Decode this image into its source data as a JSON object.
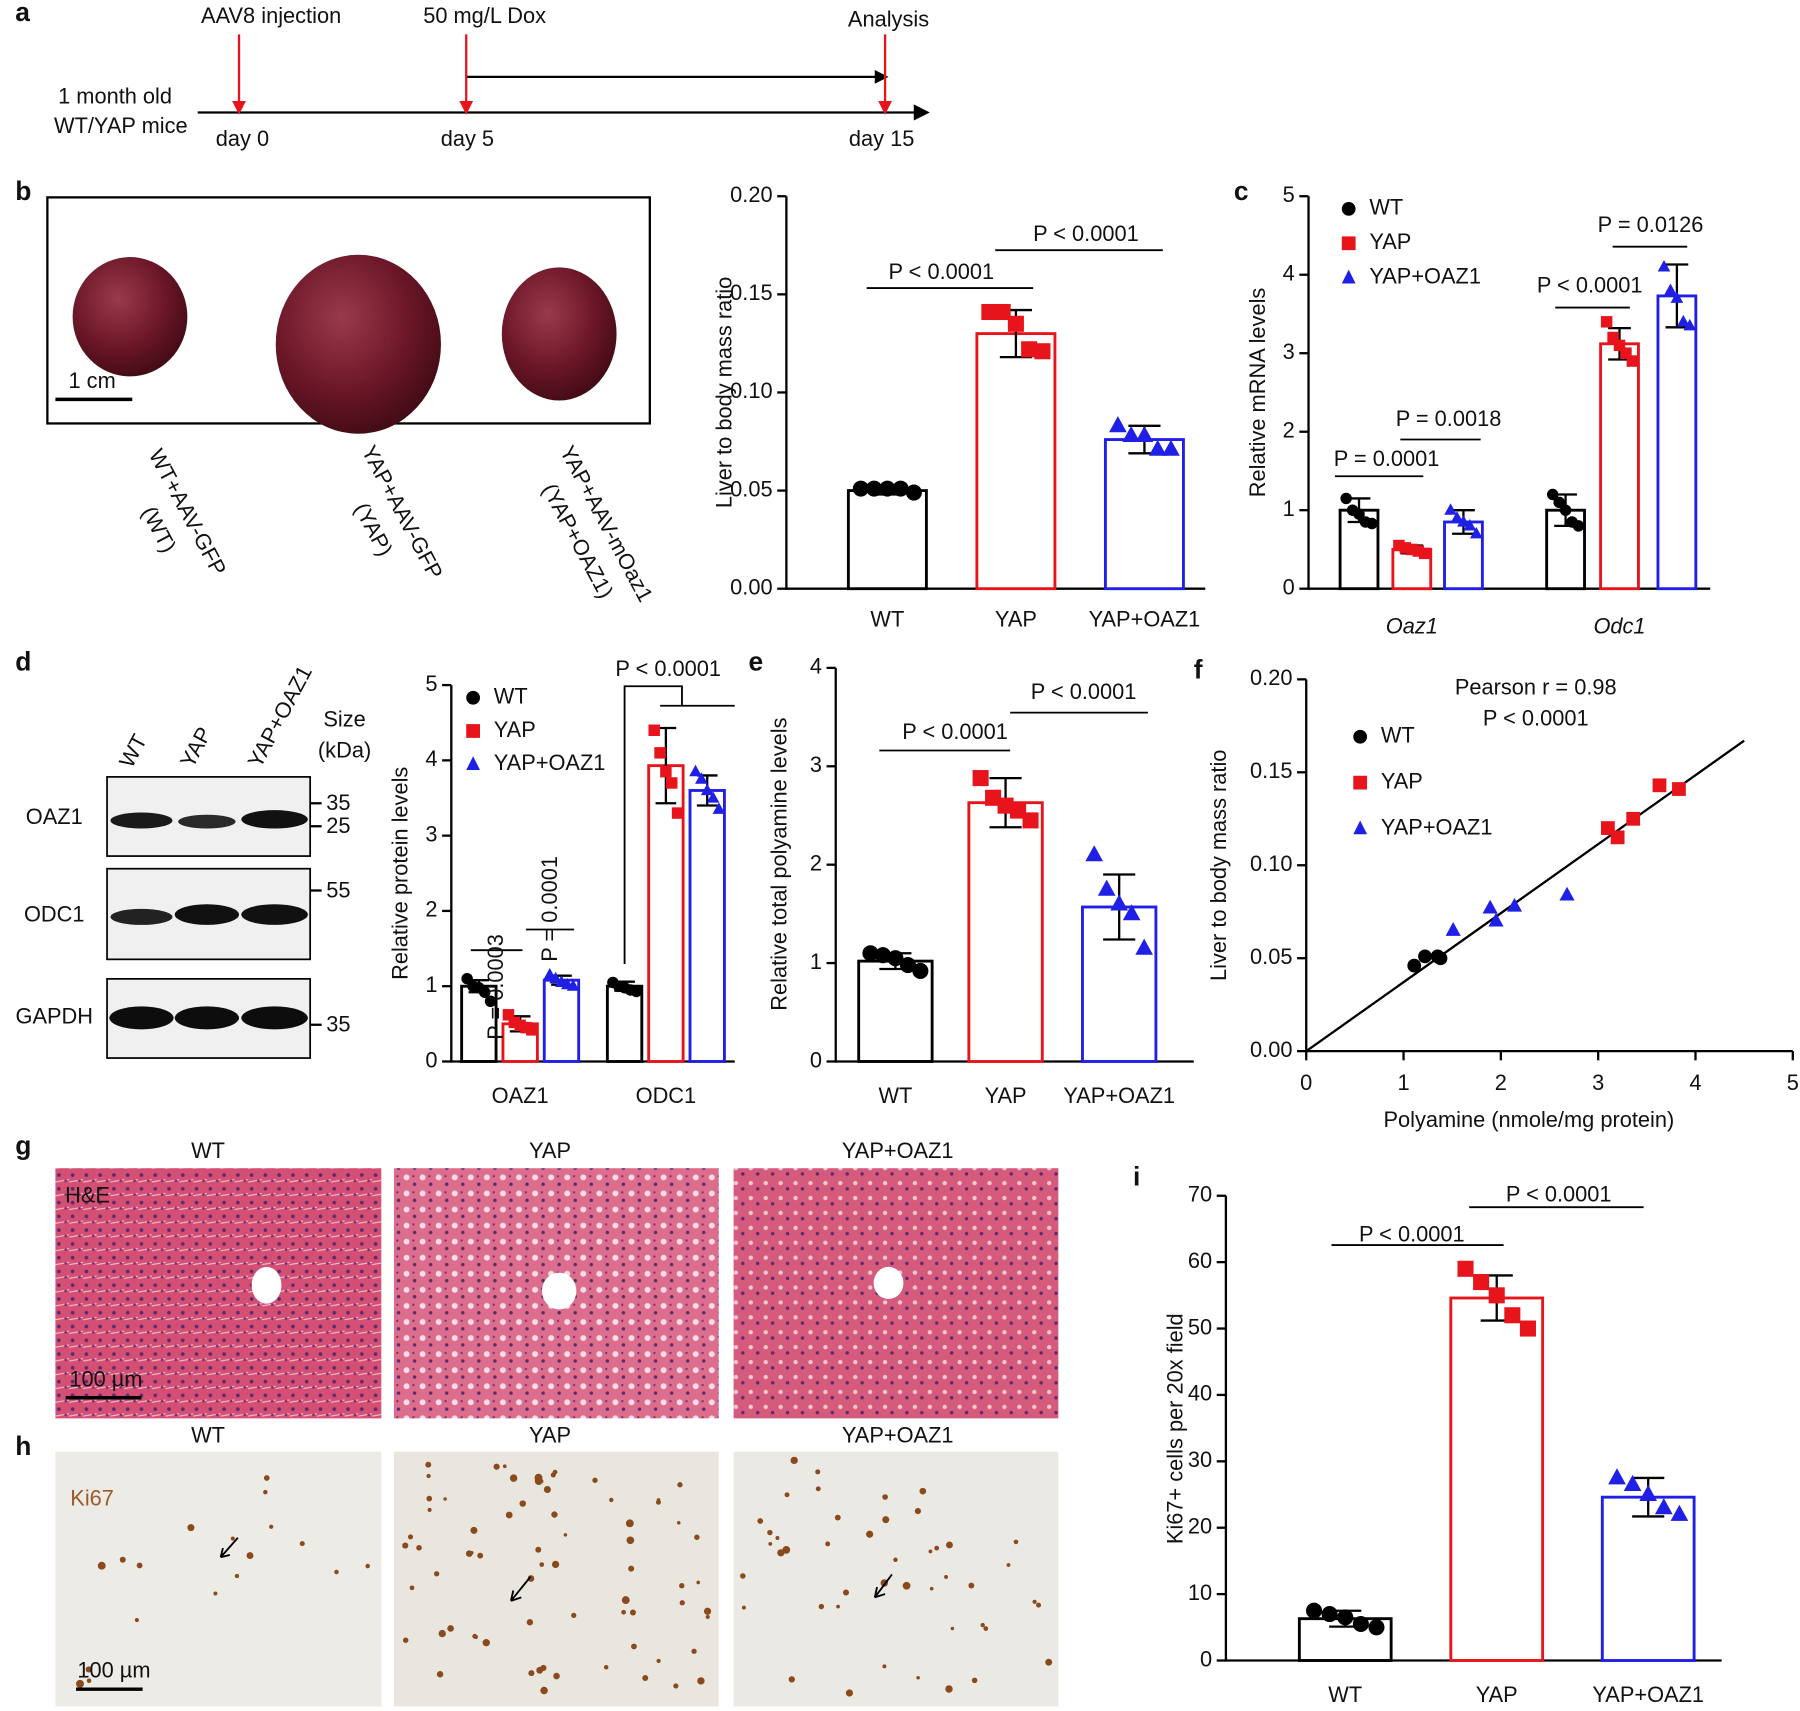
{
  "panel_labels": [
    "a",
    "b",
    "c",
    "d",
    "e",
    "f",
    "g",
    "h",
    "i"
  ],
  "timeline": {
    "events": [
      "AAV8 injection",
      "50 mg/L Dox",
      "Analysis"
    ],
    "days": [
      "day 0",
      "day 5",
      "day 15"
    ],
    "subject": [
      "1 month old",
      "WT/YAP mice"
    ]
  },
  "liver_photos": {
    "scale_bar": "1 cm",
    "labels": [
      [
        "WT+AAV-GFP",
        "(WT)"
      ],
      [
        "YAP+AAV-GFP",
        "(YAP)"
      ],
      [
        "YAP+AAV-mOaz1",
        "(YAP+OAZ1)"
      ]
    ]
  },
  "blot": {
    "lanes": [
      "WT",
      "YAP",
      "YAP+OAZ1"
    ],
    "size_header": [
      "Size",
      "(kDa)"
    ],
    "rows": [
      {
        "name": "OAZ1",
        "markers": [
          "35",
          "25"
        ]
      },
      {
        "name": "ODC1",
        "markers": [
          "55"
        ]
      },
      {
        "name": "GAPDH",
        "markers": [
          "35"
        ]
      }
    ]
  },
  "he": {
    "titles": [
      "WT",
      "YAP",
      "YAP+OAZ1"
    ],
    "stain": "H&E",
    "scale_bar": "100 µm"
  },
  "ki67": {
    "titles": [
      "WT",
      "YAP",
      "YAP+OAZ1"
    ],
    "stain": "Ki67",
    "scale_bar": "100 µm"
  },
  "chart_data": [
    {
      "type": "bar",
      "ylabel": "Liver to body mass ratio",
      "categories": [
        "WT",
        "YAP",
        "YAP+OAZ1"
      ],
      "values": [
        0.05,
        0.13,
        0.076
      ],
      "errors": [
        0.002,
        0.012,
        0.007
      ],
      "points": [
        [
          0.051,
          0.051,
          0.051,
          0.051,
          0.049
        ],
        [
          0.141,
          0.141,
          0.135,
          0.122,
          0.121
        ],
        [
          0.083,
          0.078,
          0.078,
          0.071,
          0.071
        ]
      ],
      "colors": [
        "#000000",
        "#e8141b",
        "#1f1fe6"
      ],
      "ylim": [
        0,
        0.2
      ],
      "yticks": [
        {
          "value": 0,
          "label": "0.00"
        },
        {
          "value": 0.05,
          "label": "0.05"
        },
        {
          "value": 0.1,
          "label": "0.10"
        },
        {
          "value": 0.15,
          "label": "0.15"
        },
        {
          "value": 0.2,
          "label": "0.20"
        }
      ],
      "annotations": [
        "P < 0.0001",
        "P < 0.0001"
      ]
    },
    {
      "type": "grouped_bar",
      "ylabel": "Relative mRNA levels",
      "categories": [
        "Oaz1",
        "Odc1"
      ],
      "legend": "upper left",
      "series": [
        {
          "name": "WT",
          "color": "#000000",
          "values": [
            1.0,
            1.0
          ],
          "errors": [
            0.15,
            0.2
          ],
          "points": [
            [
              1.15,
              1.0,
              0.95,
              0.85,
              0.83
            ],
            [
              1.2,
              1.1,
              1.0,
              0.85,
              0.8
            ]
          ]
        },
        {
          "name": "YAP",
          "color": "#e8141b",
          "values": [
            0.5,
            3.12
          ],
          "errors": [
            0.05,
            0.2
          ],
          "points": [
            [
              0.55,
              0.52,
              0.5,
              0.48,
              0.45
            ],
            [
              3.4,
              3.2,
              3.1,
              3.0,
              2.9
            ]
          ]
        },
        {
          "name": "YAP+OAZ1",
          "color": "#1f1fe6",
          "values": [
            0.85,
            3.73
          ],
          "errors": [
            0.15,
            0.4
          ],
          "points": [
            [
              1.0,
              0.9,
              0.85,
              0.8,
              0.7
            ],
            [
              4.1,
              3.8,
              3.7,
              3.4,
              3.35
            ]
          ]
        }
      ],
      "ylim": [
        0,
        5
      ],
      "yticks": [
        0,
        1,
        2,
        3,
        4,
        5
      ],
      "annotations": [
        "P = 0.0001",
        "P = 0.0018",
        "P < 0.0001",
        "P = 0.0126"
      ]
    },
    {
      "type": "grouped_bar",
      "ylabel": "Relative protein levels",
      "categories": [
        "OAZ1",
        "ODC1"
      ],
      "legend": "upper left",
      "series": [
        {
          "name": "WT",
          "color": "#000000",
          "values": [
            1.0,
            1.0
          ],
          "errors": [
            0.08,
            0.06
          ],
          "points": [
            [
              1.1,
              1.0,
              0.98,
              0.92,
              0.8
            ],
            [
              1.05,
              1.0,
              0.98,
              0.95,
              0.93
            ]
          ]
        },
        {
          "name": "YAP",
          "color": "#e8141b",
          "values": [
            0.5,
            3.93
          ],
          "errors": [
            0.1,
            0.5
          ],
          "points": [
            [
              0.62,
              0.52,
              0.48,
              0.45,
              0.42
            ],
            [
              4.4,
              4.1,
              3.85,
              3.7,
              3.3
            ]
          ]
        },
        {
          "name": "YAP+OAZ1",
          "color": "#1f1fe6",
          "values": [
            1.08,
            3.6
          ],
          "errors": [
            0.06,
            0.2
          ],
          "points": [
            [
              1.15,
              1.1,
              1.05,
              1.02,
              1.0
            ],
            [
              3.85,
              3.75,
              3.6,
              3.5,
              3.35
            ]
          ]
        }
      ],
      "ylim": [
        0,
        5
      ],
      "yticks": [
        0,
        1,
        2,
        3,
        4,
        5
      ],
      "annotations": [
        "P = 0.0003",
        "P = 0.0001",
        "P < 0.0001"
      ]
    },
    {
      "type": "bar",
      "ylabel": "Relative total polyamine levels",
      "categories": [
        "WT",
        "YAP",
        "YAP+OAZ1"
      ],
      "values": [
        1.02,
        2.63,
        1.57
      ],
      "errors": [
        0.08,
        0.25,
        0.33
      ],
      "points": [
        [
          1.1,
          1.08,
          1.05,
          0.98,
          0.92
        ],
        [
          2.88,
          2.68,
          2.6,
          2.55,
          2.45
        ],
        [
          2.1,
          1.75,
          1.6,
          1.5,
          1.15
        ]
      ],
      "colors": [
        "#000000",
        "#e8141b",
        "#1f1fe6"
      ],
      "ylim": [
        0,
        4
      ],
      "yticks": [
        0,
        1,
        2,
        3,
        4
      ],
      "annotations": [
        "P < 0.0001",
        "P < 0.0001"
      ]
    },
    {
      "type": "scatter",
      "xlabel": "Polyamine (nmole/mg protein)",
      "ylabel": "Liver to body mass ratio",
      "legend": "upper left",
      "series": [
        {
          "name": "WT",
          "color": "#000000",
          "x": [
            1.11,
            1.22,
            1.38,
            1.35
          ],
          "y": [
            0.046,
            0.051,
            0.05,
            0.051
          ]
        },
        {
          "name": "YAP",
          "color": "#e8141b",
          "x": [
            3.1,
            3.2,
            3.36,
            3.63,
            3.83
          ],
          "y": [
            0.12,
            0.115,
            0.125,
            0.143,
            0.141
          ]
        },
        {
          "name": "YAP+OAZ1",
          "color": "#1f1fe6",
          "x": [
            1.51,
            1.89,
            1.95,
            2.14,
            2.68
          ],
          "y": [
            0.065,
            0.077,
            0.07,
            0.078,
            0.084
          ]
        }
      ],
      "fit": {
        "x": [
          0,
          4.5
        ],
        "y": [
          0,
          0.167
        ]
      },
      "xlim": [
        0,
        5
      ],
      "xticks": [
        0,
        1,
        2,
        3,
        4,
        5
      ],
      "ylim": [
        0,
        0.2
      ],
      "yticks": [
        {
          "value": 0,
          "label": "0.00"
        },
        {
          "value": 0.05,
          "label": "0.05"
        },
        {
          "value": 0.1,
          "label": "0.10"
        },
        {
          "value": 0.15,
          "label": "0.15"
        },
        {
          "value": 0.2,
          "label": "0.20"
        }
      ],
      "annotations": [
        "Pearson r = 0.98",
        "P < 0.0001"
      ]
    },
    {
      "type": "bar",
      "ylabel": "Ki67+ cells per 20x field",
      "categories": [
        "WT",
        "YAP",
        "YAP+OAZ1"
      ],
      "values": [
        6.3,
        54.6,
        24.6
      ],
      "errors": [
        1.2,
        3.4,
        2.9
      ],
      "points": [
        [
          7.5,
          7,
          6.5,
          5.5,
          5
        ],
        [
          59,
          57,
          55,
          52,
          50
        ],
        [
          27.5,
          26.5,
          25,
          23,
          22
        ]
      ],
      "colors": [
        "#000000",
        "#e8141b",
        "#1f1fe6"
      ],
      "ylim": [
        0,
        70
      ],
      "yticks": [
        0,
        10,
        20,
        30,
        40,
        50,
        60,
        70
      ],
      "annotations": [
        "P < 0.0001",
        "P < 0.0001"
      ]
    }
  ]
}
